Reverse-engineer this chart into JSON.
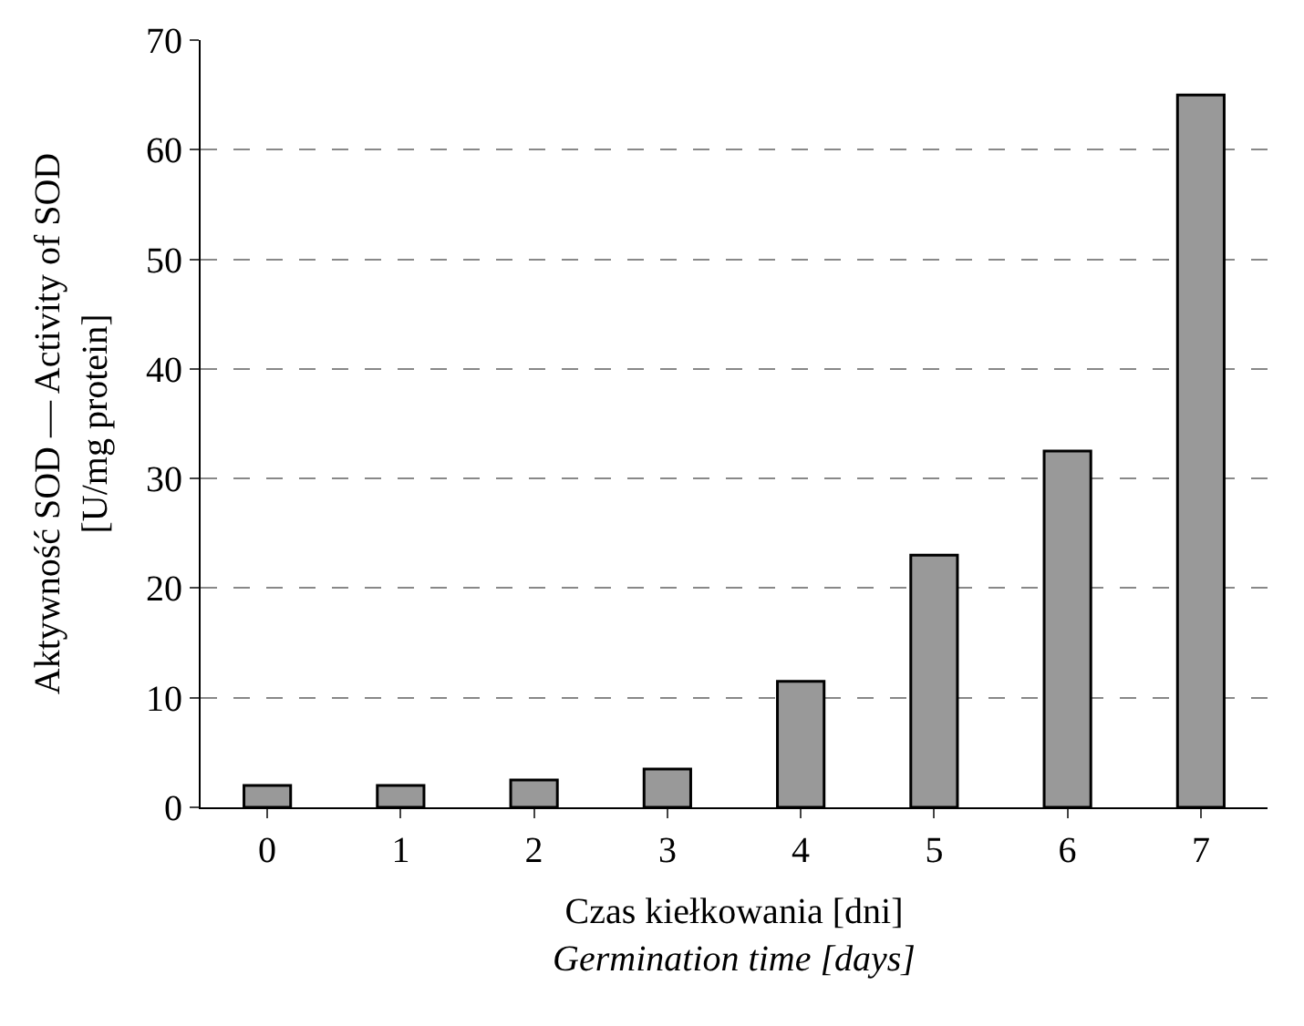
{
  "chart_data": {
    "type": "bar",
    "categories": [
      "0",
      "1",
      "2",
      "3",
      "4",
      "5",
      "6",
      "7"
    ],
    "values": [
      2,
      2,
      2.5,
      3.5,
      11.5,
      23,
      32.5,
      65
    ],
    "color": "#999999",
    "ylim": [
      0,
      70
    ],
    "yticks": [
      0,
      10,
      20,
      30,
      40,
      50,
      60,
      70
    ],
    "grid": "y",
    "xlabel": "Czas kiełkowania [dni]\nGermination time [days]",
    "ylabel": "Aktywność SOD — Activity of SOD\n[U/mg protein]"
  }
}
